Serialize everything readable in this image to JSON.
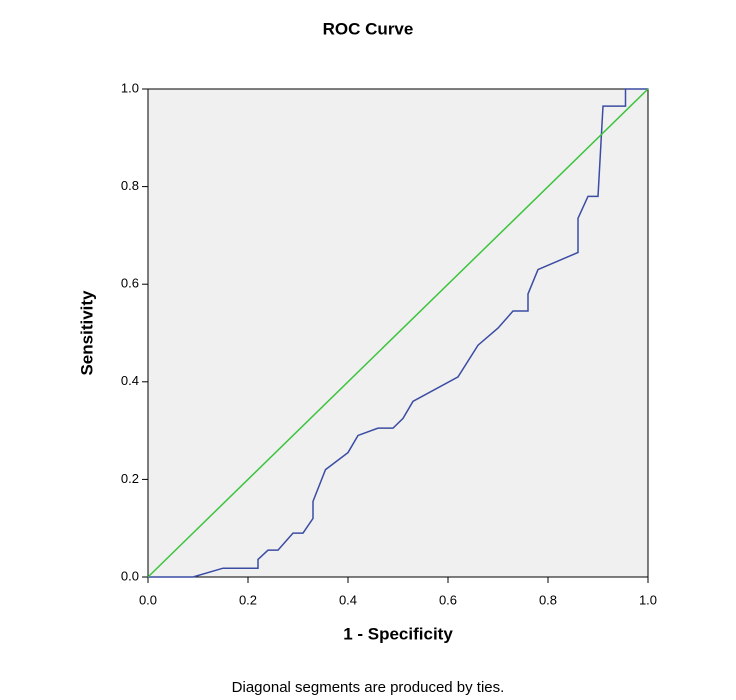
{
  "chart_data": {
    "type": "line",
    "title": "ROC Curve",
    "x_label": "1 - Specificity",
    "y_label": "Sensitivity",
    "note": "Diagonal segments are produced by ties.",
    "xlim": [
      0,
      1
    ],
    "ylim": [
      0,
      1
    ],
    "xticks": [
      {
        "value": 0,
        "label": "0.0"
      },
      0.2,
      0.4,
      0.6,
      0.8,
      {
        "value": 1,
        "label": "1.0"
      }
    ],
    "yticks": [
      {
        "value": 0,
        "label": "0.0"
      },
      0.2,
      0.4,
      0.6,
      0.8,
      {
        "value": 1,
        "label": "1.0"
      }
    ],
    "series": [
      {
        "color": "#3b4ca3",
        "x": [
          0,
          0.09,
          0.15,
          0.22,
          0.22,
          0.24,
          0.26,
          0.29,
          0.31,
          0.33,
          0.33,
          0.355,
          0.4,
          0.42,
          0.46,
          0.49,
          0.51,
          0.53,
          0.62,
          0.66,
          0.7,
          0.73,
          0.76,
          0.76,
          0.78,
          0.86,
          0.86,
          0.88,
          0.9,
          0.91,
          0.955,
          0.955,
          1
        ],
        "values": [
          0,
          0,
          0.018,
          0.018,
          0.036,
          0.055,
          0.055,
          0.09,
          0.09,
          0.12,
          0.155,
          0.22,
          0.255,
          0.29,
          0.305,
          0.305,
          0.325,
          0.36,
          0.41,
          0.475,
          0.51,
          0.545,
          0.545,
          0.58,
          0.63,
          0.665,
          0.735,
          0.78,
          0.78,
          0.965,
          0.965,
          1,
          1
        ]
      },
      {
        "color": "#3cc43c",
        "x": [
          0,
          1
        ],
        "values": [
          0,
          1
        ]
      }
    ]
  }
}
